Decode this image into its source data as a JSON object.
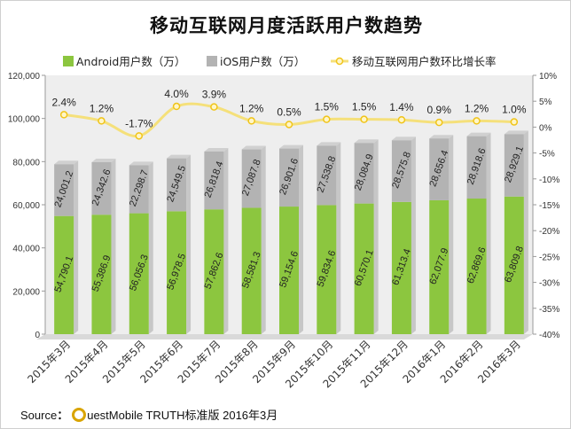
{
  "source": {
    "label": "Source",
    "colon": "：",
    "text": "uestMobile TRUTH标准版 2016年3月"
  },
  "colors": {
    "android": "#8cc63f",
    "ios": "#b3b3b3",
    "growth_line": "#f5e07a",
    "growth_marker": "#f0c419",
    "plot_bg": "#eeeeee"
  },
  "chart_data": {
    "type": "bar",
    "title": "移动互联网月度活跃用户数趋势",
    "stacked": true,
    "categories": [
      "2015年3月",
      "2015年4月",
      "2015年5月",
      "2015年6月",
      "2015年7月",
      "2015年8月",
      "2015年9月",
      "2015年10月",
      "2015年11月",
      "2015年12月",
      "2016年1月",
      "2016年2月",
      "2016年3月"
    ],
    "series": [
      {
        "name": "Android用户数（万）",
        "type": "bar",
        "axis": "left",
        "values": [
          54790.1,
          55386.9,
          56056.3,
          56978.5,
          57862.6,
          58581.3,
          59154.6,
          59834.6,
          60570.1,
          61313.4,
          62077.9,
          62869.6,
          63809.8
        ],
        "labels": [
          "54,790.1",
          "55,386.9",
          "56,056.3",
          "56,978.5",
          "57,862.6",
          "58,581.3",
          "59,154.6",
          "59,834.6",
          "60,570.1",
          "61,313.4",
          "62,077.9",
          "62,869.6",
          "63,809.8"
        ]
      },
      {
        "name": "iOS用户数（万）",
        "type": "bar",
        "axis": "left",
        "values": [
          24001.2,
          24342.6,
          22298.7,
          24549.5,
          26818.4,
          27087.8,
          26901.6,
          27538.8,
          28084.9,
          28575.8,
          28656.4,
          28918.6,
          28929.1
        ],
        "labels": [
          "24,001.2",
          "24,342.6",
          "22,298.7",
          "24,549.5",
          "26,818.4",
          "27,087.8",
          "26,901.6",
          "27,538.8",
          "28,084.9",
          "28,575.8",
          "28,656.4",
          "28,918.6",
          "28,929.1"
        ]
      },
      {
        "name": "移动互联网用户数环比增长率",
        "type": "line",
        "axis": "right",
        "values": [
          2.4,
          1.2,
          -1.7,
          4.0,
          3.9,
          1.2,
          0.5,
          1.5,
          1.5,
          1.4,
          0.9,
          1.2,
          1.0
        ],
        "labels": [
          "2.4%",
          "1.2%",
          "-1.7%",
          "4.0%",
          "3.9%",
          "1.2%",
          "0.5%",
          "1.5%",
          "1.5%",
          "1.4%",
          "0.9%",
          "1.2%",
          "1.0%"
        ]
      }
    ],
    "y_left": {
      "min": 0,
      "max": 120000,
      "ticks": [
        0,
        20000,
        40000,
        60000,
        80000,
        100000,
        120000
      ],
      "tick_labels": [
        "0",
        "20,000",
        "40,000",
        "60,000",
        "80,000",
        "100,000",
        "120,000"
      ]
    },
    "y_right": {
      "min": -40,
      "max": 10,
      "ticks": [
        10,
        5,
        0,
        -5,
        -10,
        -15,
        -20,
        -25,
        -30,
        -35,
        -40
      ],
      "tick_labels": [
        "10%",
        "5%",
        "0%",
        "-5%",
        "-10%",
        "-15%",
        "-20%",
        "-25%",
        "-30%",
        "-35%",
        "-40%"
      ]
    },
    "legend_position": "top",
    "grid": false
  }
}
